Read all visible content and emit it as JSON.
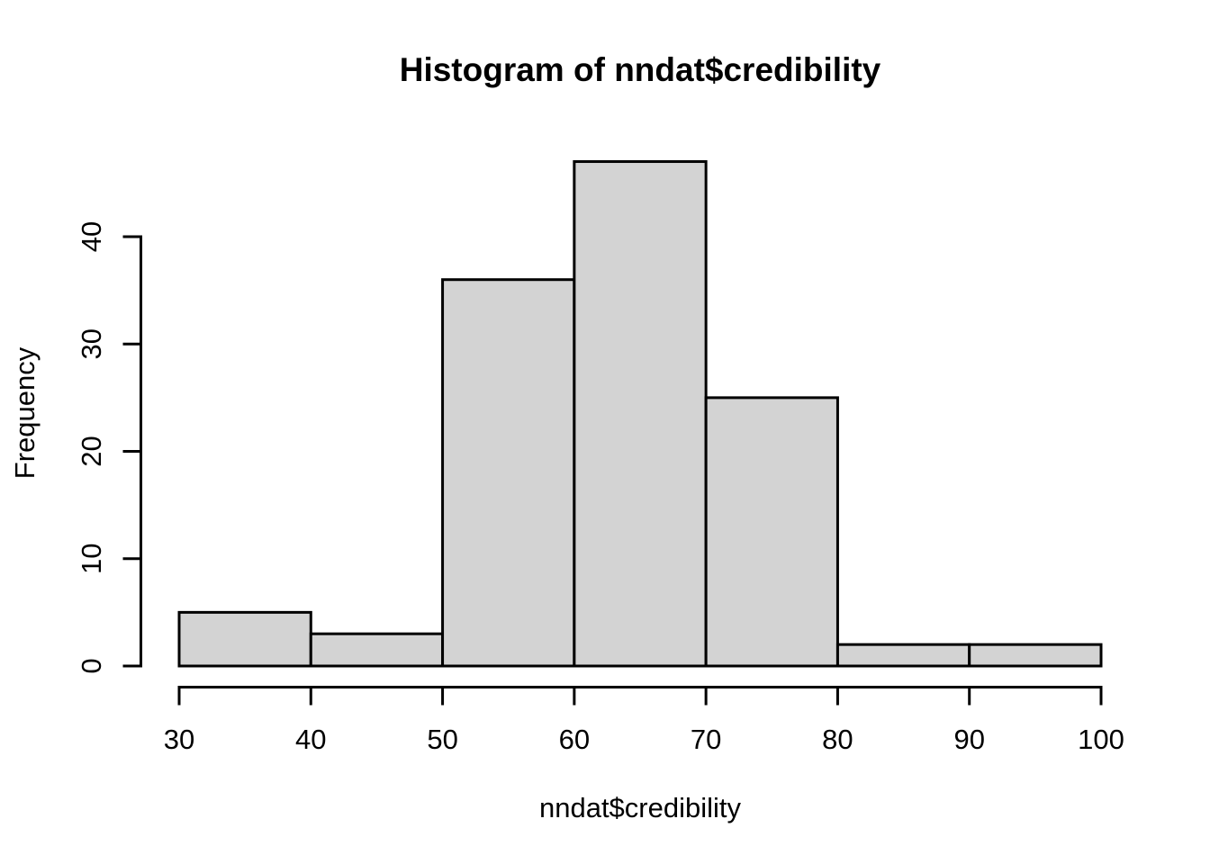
{
  "chart_data": {
    "type": "bar",
    "subtype": "histogram",
    "title": "Histogram of nndat$credibility",
    "xlabel": "nndat$credibility",
    "ylabel": "Frequency",
    "bin_edges": [
      30,
      40,
      50,
      60,
      70,
      80,
      90,
      100
    ],
    "counts": [
      5,
      3,
      36,
      47,
      25,
      2,
      2
    ],
    "x_ticks": [
      30,
      40,
      50,
      60,
      70,
      80,
      90,
      100
    ],
    "y_ticks": [
      0,
      10,
      20,
      30,
      40
    ],
    "xlim": [
      30,
      100
    ],
    "ylim": [
      0,
      47
    ],
    "grid": false,
    "legend": null,
    "colors": {
      "bar_fill": "#d3d3d3",
      "bar_stroke": "#000000",
      "axis": "#000000",
      "text": "#000000",
      "background": "#ffffff"
    }
  }
}
